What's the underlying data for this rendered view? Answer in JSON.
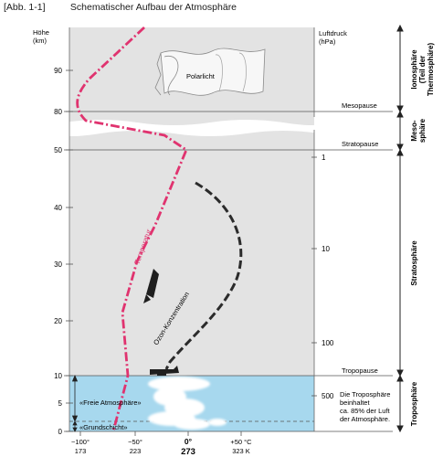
{
  "header": {
    "figure_number": "[Abb. 1-1]",
    "title": "Schematischer Aufbau der Atmosphäre"
  },
  "axes": {
    "height_title_line1": "Höhe",
    "height_title_line2": "(km)",
    "height_ticks": [
      "90",
      "80",
      "50",
      "40",
      "30",
      "20",
      "10",
      "5",
      "0"
    ],
    "pressure_title_line1": "Luftdruck",
    "pressure_title_line2": "(hPa)",
    "pressure_ticks": [
      "1",
      "10",
      "100",
      "500"
    ],
    "temp_celsius": [
      "−100°",
      "−50°",
      "0°",
      "+50 °C"
    ],
    "temp_kelvin": [
      "173",
      "223",
      "273",
      "323 K"
    ]
  },
  "boundaries": {
    "mesopause": "Mesopause",
    "stratopause": "Stratopause",
    "tropopause": "Tropopause"
  },
  "layers": {
    "ionosphere_line1": "Ionosphäre",
    "ionosphere_line2": "(Teil der",
    "ionosphere_line3": "Thermosphäre)",
    "mesosphere_line1": "Meso-",
    "mesosphere_line2": "sphäre",
    "stratosphere": "Stratosphäre",
    "troposphere": "Troposphäre"
  },
  "labels": {
    "aurora": "Polarlicht",
    "temperature": "Temperatur",
    "ozone": "Ozon-Konzentration",
    "free_atmosphere": "«Freie Atmosphäre»",
    "ground_layer": "«Grundschicht»",
    "troposphere_note_line1": "Die Troposphäre",
    "troposphere_note_line2": "beinhaltet",
    "troposphere_note_line3": "ca. 85% der Luft",
    "troposphere_note_line4": "der Atmosphäre."
  },
  "colors": {
    "panel": "#e3e3e3",
    "troposphere_fill": "#a7d8ee",
    "temperature_curve": "#e0336f",
    "ozone_curve": "#2b2b2b"
  }
}
